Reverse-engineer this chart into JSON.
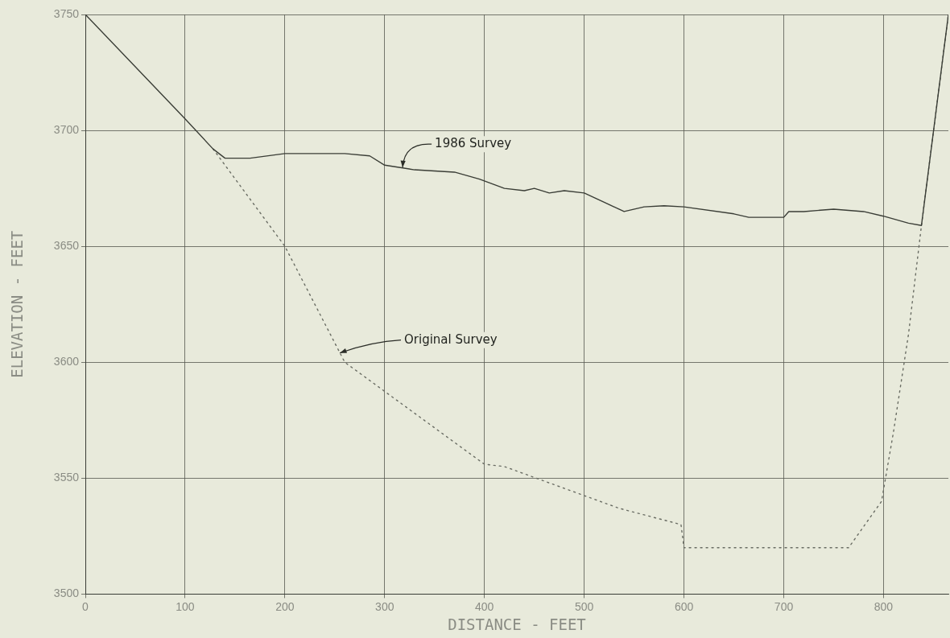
{
  "chart_data": {
    "type": "line",
    "xlabel": "DISTANCE - FEET",
    "ylabel": "ELEVATION - FEET",
    "xlim": [
      0,
      865
    ],
    "xticks": [
      0,
      100,
      200,
      300,
      400,
      500,
      600,
      700,
      800
    ],
    "ylim": [
      3500,
      3750
    ],
    "yticks": [
      3500,
      3550,
      3600,
      3650,
      3700,
      3750
    ],
    "grid": true,
    "marker": "none",
    "series": [
      {
        "color": "#3a3d36",
        "line_style": "solid",
        "x": [
          0,
          100,
          128,
          140,
          165,
          200,
          260,
          285,
          300,
          330,
          370,
          395,
          420,
          440,
          450,
          465,
          480,
          500,
          520,
          540,
          560,
          580,
          600,
          650,
          665,
          700,
          705,
          720,
          750,
          780,
          800,
          825,
          838,
          865
        ],
        "values": [
          3750,
          3705,
          3692,
          3688,
          3688,
          3690,
          3690,
          3689,
          3685,
          3683,
          3682,
          3679,
          3675,
          3674,
          3675,
          3673,
          3674,
          3673,
          3669,
          3665,
          3667,
          3667.5,
          3667,
          3664,
          3662.5,
          3662.5,
          3665,
          3665,
          3666,
          3665,
          3663,
          3660,
          3659,
          3750
        ]
      },
      {
        "color": "#6a6d64",
        "line_style": "dotted",
        "x": [
          128,
          200,
          260,
          400,
          420,
          535,
          597,
          600,
          620,
          700,
          765,
          798,
          810,
          825,
          838,
          865
        ],
        "values": [
          3692,
          3650,
          3600,
          3556,
          3555,
          3537,
          3530,
          3520,
          3520,
          3520,
          3520,
          3540,
          3570,
          3612,
          3659,
          3750
        ]
      }
    ],
    "annotations": [
      {
        "text": "1986 Survey",
        "x": 318,
        "y": 3684
      },
      {
        "text": "Original Survey",
        "x": 255,
        "y": 3604
      }
    ]
  }
}
